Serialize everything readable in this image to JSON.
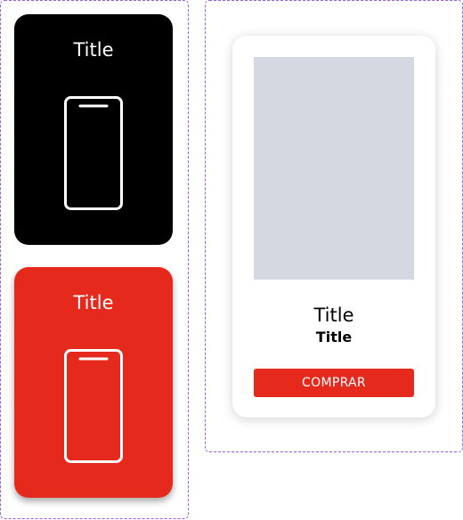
{
  "category_cards": [
    {
      "title": "Title",
      "background": "#000000",
      "icon": "smartphone-icon"
    },
    {
      "title": "Title",
      "background": "#e52a1d",
      "icon": "smartphone-icon"
    }
  ],
  "product_card": {
    "title": "Title",
    "subtitle": "Title",
    "buy_label": "COMPRAR",
    "image_placeholder_color": "#d4d9e1",
    "button_color": "#e52a1d"
  },
  "colors": {
    "accent": "#e52a1d",
    "frame_border": "#9b59e8"
  }
}
